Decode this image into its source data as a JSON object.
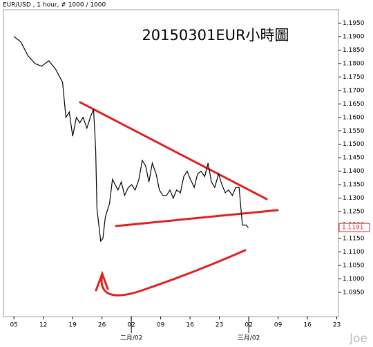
{
  "chart_data": {
    "type": "line",
    "header": "EUR/USD , 1 hour, # 1000 / 1000",
    "title": "20150301EUR小時圖",
    "watermark": "Joe",
    "color": "#000000",
    "x": [
      0,
      1.65,
      3.3,
      5,
      6.6,
      8.3,
      9.9,
      11.6,
      12.4,
      13.2,
      14,
      14.9,
      15.7,
      16.5,
      17.4,
      18.2,
      19,
      19.5,
      19.8,
      20.7,
      21.2,
      21.8,
      22.8,
      23.5,
      24.8,
      25.6,
      26.4,
      27.3,
      28.1,
      28.9,
      29.8,
      30.6,
      31.4,
      32.2,
      33,
      33.9,
      34.7,
      35.5,
      36.4,
      37.2,
      38,
      38.8,
      39.7,
      40.5,
      41.3,
      42.1,
      43,
      43.8,
      44.6,
      45.5,
      46.3,
      47.1,
      47.9,
      48.8,
      49.6,
      50.4,
      51.2,
      52.1,
      52.9,
      53.7,
      54.2,
      54.5,
      55.4,
      55.9
    ],
    "values": [
      1.19,
      1.188,
      1.183,
      1.18,
      1.179,
      1.181,
      1.178,
      1.173,
      1.16,
      1.162,
      1.153,
      1.16,
      1.158,
      1.16,
      1.156,
      1.16,
      1.163,
      1.148,
      1.126,
      1.114,
      1.115,
      1.123,
      1.128,
      1.137,
      1.133,
      1.136,
      1.131,
      1.134,
      1.135,
      1.133,
      1.137,
      1.144,
      1.142,
      1.136,
      1.143,
      1.139,
      1.133,
      1.131,
      1.131,
      1.133,
      1.13,
      1.133,
      1.132,
      1.138,
      1.14,
      1.137,
      1.134,
      1.139,
      1.14,
      1.138,
      1.143,
      1.136,
      1.134,
      1.139,
      1.135,
      1.132,
      1.133,
      1.131,
      1.134,
      1.134,
      1.125,
      1.12,
      1.12,
      1.119
    ],
    "current_price": 1.1191,
    "xlim": [
      -2.5,
      77.4
    ],
    "ylim": [
      1.086,
      1.2
    ],
    "xticks": [
      {
        "value": 0,
        "label": "05"
      },
      {
        "value": 7,
        "label": "12"
      },
      {
        "value": 14,
        "label": "19"
      },
      {
        "value": 21,
        "label": "26"
      },
      {
        "value": 28,
        "label": "02"
      },
      {
        "value": 35,
        "label": "09"
      },
      {
        "value": 42,
        "label": "16"
      },
      {
        "value": 49,
        "label": "23"
      },
      {
        "value": 56,
        "label": "02"
      },
      {
        "value": 63,
        "label": "09"
      },
      {
        "value": 70,
        "label": "16"
      },
      {
        "value": 77,
        "label": "23"
      }
    ],
    "month_labels": [
      {
        "value": 28,
        "label": "二月/02"
      },
      {
        "value": 56,
        "label": "三月/02"
      }
    ],
    "yticks": [
      {
        "value": 1.095,
        "label": "1.0950"
      },
      {
        "value": 1.1,
        "label": "1.1000"
      },
      {
        "value": 1.105,
        "label": "1.1050"
      },
      {
        "value": 1.11,
        "label": "1.1100"
      },
      {
        "value": 1.115,
        "label": "1.1150"
      },
      {
        "value": 1.12,
        "label": "1.1200"
      },
      {
        "value": 1.125,
        "label": "1.1250"
      },
      {
        "value": 1.13,
        "label": "1.1300"
      },
      {
        "value": 1.135,
        "label": "1.1350"
      },
      {
        "value": 1.14,
        "label": "1.1400"
      },
      {
        "value": 1.145,
        "label": "1.1450"
      },
      {
        "value": 1.15,
        "label": "1.1500"
      },
      {
        "value": 1.155,
        "label": "1.1550"
      },
      {
        "value": 1.16,
        "label": "1.1600"
      },
      {
        "value": 1.165,
        "label": "1.1650"
      },
      {
        "value": 1.17,
        "label": "1.1700"
      },
      {
        "value": 1.175,
        "label": "1.1750"
      },
      {
        "value": 1.18,
        "label": "1.1800"
      },
      {
        "value": 1.185,
        "label": "1.1850"
      },
      {
        "value": 1.19,
        "label": "1.1900"
      },
      {
        "value": 1.195,
        "label": "1.1950"
      }
    ]
  }
}
